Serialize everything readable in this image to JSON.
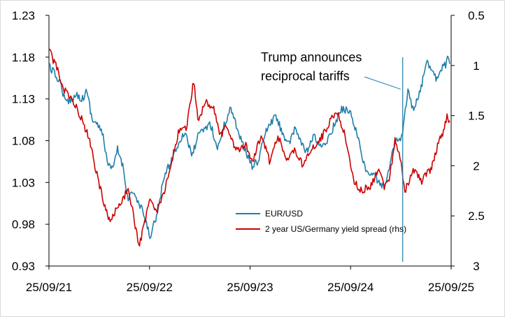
{
  "chart_data": {
    "type": "line",
    "title": "",
    "xlabel": "",
    "ylabel_left": "",
    "ylabel_right": "",
    "x_ticks": [
      "25/09/21",
      "25/09/22",
      "25/09/23",
      "25/09/24",
      "25/09/25"
    ],
    "x_range": [
      "2021-09-25",
      "2025-09-25"
    ],
    "left_axis": {
      "min": 0.93,
      "max": 1.23,
      "ticks": [
        "0.93",
        "0.98",
        "1.03",
        "1.08",
        "1.13",
        "1.18",
        "1.23"
      ]
    },
    "right_axis": {
      "min": 0.5,
      "max": 3.0,
      "inverted": true,
      "ticks": [
        "0.5",
        "1",
        "1.5",
        "2",
        "2.5",
        "3"
      ]
    },
    "grid": false,
    "legend_position": "bottom-center",
    "annotation": {
      "lines": [
        "Trump announces",
        "reciprocal tariffs"
      ],
      "points_to": {
        "date": "2025-04-02",
        "value": 1.135,
        "axis": "left"
      }
    },
    "series": [
      {
        "name": "EUR/USD",
        "axis": "left",
        "color": "#1f7fa8",
        "points": [
          [
            "2021-09-25",
            1.17
          ],
          [
            "2021-10-15",
            1.16
          ],
          [
            "2021-11-05",
            1.15
          ],
          [
            "2021-11-25",
            1.125
          ],
          [
            "2021-12-15",
            1.13
          ],
          [
            "2022-01-05",
            1.135
          ],
          [
            "2022-01-25",
            1.13
          ],
          [
            "2022-02-10",
            1.14
          ],
          [
            "2022-03-01",
            1.105
          ],
          [
            "2022-03-20",
            1.1
          ],
          [
            "2022-04-10",
            1.085
          ],
          [
            "2022-04-28",
            1.05
          ],
          [
            "2022-05-15",
            1.045
          ],
          [
            "2022-06-01",
            1.07
          ],
          [
            "2022-06-20",
            1.05
          ],
          [
            "2022-07-10",
            1.01
          ],
          [
            "2022-07-25",
            1.02
          ],
          [
            "2022-08-15",
            1.005
          ],
          [
            "2022-09-01",
            0.995
          ],
          [
            "2022-09-27",
            0.965
          ],
          [
            "2022-10-15",
            0.985
          ],
          [
            "2022-10-27",
            0.995
          ],
          [
            "2022-11-15",
            1.035
          ],
          [
            "2022-12-05",
            1.05
          ],
          [
            "2022-12-30",
            1.07
          ],
          [
            "2023-01-20",
            1.085
          ],
          [
            "2023-02-05",
            1.09
          ],
          [
            "2023-02-25",
            1.06
          ],
          [
            "2023-03-20",
            1.085
          ],
          [
            "2023-04-15",
            1.095
          ],
          [
            "2023-05-05",
            1.1
          ],
          [
            "2023-05-30",
            1.07
          ],
          [
            "2023-06-20",
            1.095
          ],
          [
            "2023-07-18",
            1.12
          ],
          [
            "2023-08-10",
            1.095
          ],
          [
            "2023-09-05",
            1.07
          ],
          [
            "2023-10-03",
            1.05
          ],
          [
            "2023-10-25",
            1.055
          ],
          [
            "2023-11-20",
            1.09
          ],
          [
            "2023-12-28",
            1.11
          ],
          [
            "2024-01-20",
            1.09
          ],
          [
            "2024-02-15",
            1.075
          ],
          [
            "2024-03-08",
            1.095
          ],
          [
            "2024-04-16",
            1.065
          ],
          [
            "2024-05-15",
            1.085
          ],
          [
            "2024-06-14",
            1.07
          ],
          [
            "2024-07-15",
            1.09
          ],
          [
            "2024-08-23",
            1.118
          ],
          [
            "2024-09-25",
            1.115
          ],
          [
            "2024-10-20",
            1.085
          ],
          [
            "2024-11-22",
            1.04
          ],
          [
            "2024-12-20",
            1.04
          ],
          [
            "2025-01-13",
            1.025
          ],
          [
            "2025-02-05",
            1.035
          ],
          [
            "2025-03-05",
            1.08
          ],
          [
            "2025-03-25",
            1.08
          ],
          [
            "2025-04-02",
            1.09
          ],
          [
            "2025-04-21",
            1.14
          ],
          [
            "2025-05-12",
            1.115
          ],
          [
            "2025-06-05",
            1.14
          ],
          [
            "2025-06-30",
            1.175
          ],
          [
            "2025-07-20",
            1.165
          ],
          [
            "2025-08-01",
            1.155
          ],
          [
            "2025-08-25",
            1.17
          ],
          [
            "2025-09-05",
            1.17
          ],
          [
            "2025-09-12",
            1.183
          ],
          [
            "2025-09-20",
            1.172
          ]
        ]
      },
      {
        "name": "2 year US/Germany yield spread (rhs)",
        "axis": "right",
        "color": "#cc0000",
        "points": [
          [
            "2021-09-25",
            0.85
          ],
          [
            "2021-10-20",
            1.0
          ],
          [
            "2021-11-20",
            1.25
          ],
          [
            "2021-12-20",
            1.35
          ],
          [
            "2022-01-25",
            1.55
          ],
          [
            "2022-02-20",
            1.75
          ],
          [
            "2022-03-15",
            2.05
          ],
          [
            "2022-04-10",
            2.35
          ],
          [
            "2022-05-05",
            2.55
          ],
          [
            "2022-05-25",
            2.45
          ],
          [
            "2022-06-20",
            2.35
          ],
          [
            "2022-07-10",
            2.2
          ],
          [
            "2022-08-01",
            2.55
          ],
          [
            "2022-08-20",
            2.8
          ],
          [
            "2022-09-05",
            2.6
          ],
          [
            "2022-09-27",
            2.35
          ],
          [
            "2022-10-20",
            2.45
          ],
          [
            "2022-11-15",
            2.3
          ],
          [
            "2022-12-15",
            1.95
          ],
          [
            "2023-01-15",
            1.6
          ],
          [
            "2023-02-05",
            1.65
          ],
          [
            "2023-03-05",
            1.15
          ],
          [
            "2023-03-20",
            1.55
          ],
          [
            "2023-04-20",
            1.35
          ],
          [
            "2023-05-20",
            1.45
          ],
          [
            "2023-06-10",
            1.7
          ],
          [
            "2023-07-05",
            1.6
          ],
          [
            "2023-08-05",
            1.85
          ],
          [
            "2023-09-10",
            1.8
          ],
          [
            "2023-10-05",
            1.95
          ],
          [
            "2023-11-05",
            1.7
          ],
          [
            "2023-12-05",
            1.95
          ],
          [
            "2024-01-05",
            1.7
          ],
          [
            "2024-02-05",
            1.95
          ],
          [
            "2024-03-05",
            1.85
          ],
          [
            "2024-04-05",
            2.0
          ],
          [
            "2024-05-05",
            1.85
          ],
          [
            "2024-06-05",
            1.75
          ],
          [
            "2024-07-05",
            1.6
          ],
          [
            "2024-08-05",
            1.45
          ],
          [
            "2024-09-05",
            1.7
          ],
          [
            "2024-10-05",
            2.15
          ],
          [
            "2024-11-05",
            2.25
          ],
          [
            "2024-12-05",
            2.2
          ],
          [
            "2025-01-05",
            2.05
          ],
          [
            "2025-01-25",
            2.2
          ],
          [
            "2025-02-15",
            2.1
          ],
          [
            "2025-03-05",
            1.75
          ],
          [
            "2025-03-20",
            1.85
          ],
          [
            "2025-04-10",
            2.25
          ],
          [
            "2025-05-10",
            2.05
          ],
          [
            "2025-06-10",
            2.15
          ],
          [
            "2025-07-10",
            2.05
          ],
          [
            "2025-07-25",
            1.95
          ],
          [
            "2025-08-10",
            1.75
          ],
          [
            "2025-08-25",
            1.7
          ],
          [
            "2025-09-10",
            1.5
          ],
          [
            "2025-09-20",
            1.55
          ]
        ]
      }
    ]
  }
}
